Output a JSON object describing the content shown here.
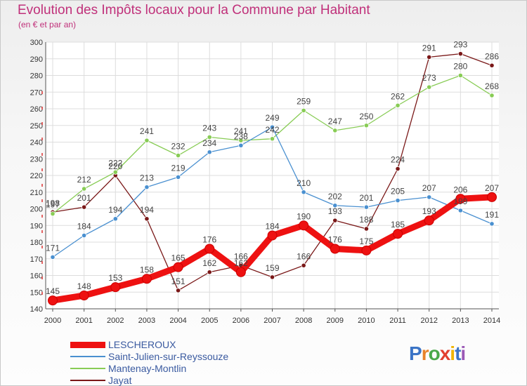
{
  "chart_data": {
    "type": "line",
    "title": "Evolution des Impôts locaux pour la Commune par Habitant",
    "subtitle": "(en € et par an)",
    "x": [
      "2000",
      "2001",
      "2002",
      "2003",
      "2004",
      "2005",
      "2006",
      "2007",
      "2008",
      "2009",
      "2010",
      "2011",
      "2012",
      "2013",
      "2014"
    ],
    "ylim": [
      140,
      300
    ],
    "yticks": [
      140,
      150,
      160,
      170,
      180,
      190,
      200,
      210,
      220,
      230,
      240,
      250,
      260,
      270,
      280,
      290,
      300
    ],
    "grid": true,
    "legend_position": "bottom-left",
    "series": [
      {
        "name": "LESCHEROUX",
        "color": "#ee1111",
        "values": [
          145,
          148,
          153,
          158,
          165,
          176,
          162,
          184,
          190,
          176,
          175,
          185,
          193,
          206,
          207
        ]
      },
      {
        "name": "Saint-Julien-sur-Reyssouze",
        "color": "#4a90d0",
        "values": [
          171,
          184,
          194,
          213,
          219,
          234,
          238,
          249,
          210,
          202,
          201,
          205,
          207,
          199,
          191
        ]
      },
      {
        "name": "Mantenay-Montlin",
        "color": "#88cc55",
        "values": [
          197,
          212,
          222,
          241,
          232,
          243,
          241,
          242,
          259,
          247,
          250,
          262,
          273,
          280,
          268
        ]
      },
      {
        "name": "Jayat",
        "color": "#7a1818",
        "values": [
          198,
          201,
          220,
          194,
          151,
          162,
          166,
          159,
          166,
          193,
          188,
          224,
          291,
          293,
          286
        ]
      }
    ]
  },
  "brand": {
    "logo_text": "Proxiti"
  }
}
